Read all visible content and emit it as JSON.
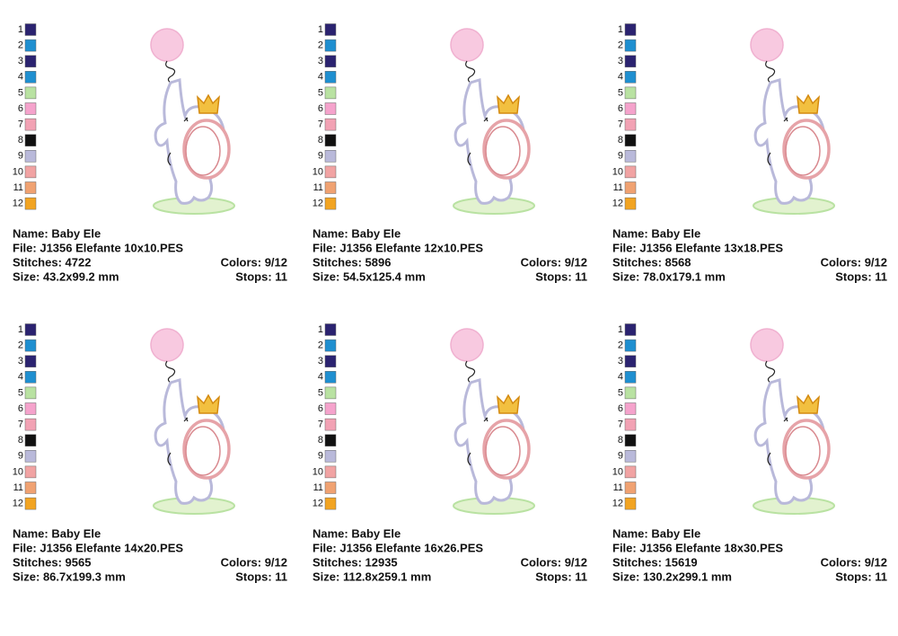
{
  "palette": [
    {
      "number": "1",
      "color": "#2b2370"
    },
    {
      "number": "2",
      "color": "#1f8fd0"
    },
    {
      "number": "3",
      "color": "#2b2370"
    },
    {
      "number": "4",
      "color": "#1f8fd0"
    },
    {
      "number": "5",
      "color": "#b9e2a2"
    },
    {
      "number": "6",
      "color": "#f5a3cc"
    },
    {
      "number": "7",
      "color": "#f2a2b4"
    },
    {
      "number": "8",
      "color": "#111111"
    },
    {
      "number": "9",
      "color": "#b9b9da"
    },
    {
      "number": "10",
      "color": "#f1a3a3"
    },
    {
      "number": "11",
      "color": "#f0a272"
    },
    {
      "number": "12",
      "color": "#f2a422"
    }
  ],
  "panels": [
    {
      "name": "Name: Baby Ele",
      "file": "File: J1356 Elefante 10x10.PES",
      "stitches": "Stitches: 4722",
      "colors": "Colors: 9/12",
      "size": "Size: 43.2x99.2 mm",
      "stops": "Stops: 11"
    },
    {
      "name": "Name: Baby Ele",
      "file": "File: J1356 Elefante 12x10.PES",
      "stitches": "Stitches: 5896",
      "colors": "Colors: 9/12",
      "size": "Size: 54.5x125.4 mm",
      "stops": "Stops: 11"
    },
    {
      "name": "Name: Baby Ele",
      "file": "File: J1356 Elefante 13x18.PES",
      "stitches": "Stitches: 8568",
      "colors": "Colors: 9/12",
      "size": "Size: 78.0x179.1 mm",
      "stops": "Stops: 11"
    },
    {
      "name": "Name: Baby Ele",
      "file": "File: J1356 Elefante 14x20.PES",
      "stitches": "Stitches: 9565",
      "colors": "Colors: 9/12",
      "size": "Size: 86.7x199.3 mm",
      "stops": "Stops: 11"
    },
    {
      "name": "Name: Baby Ele",
      "file": "File: J1356 Elefante 16x26.PES",
      "stitches": "Stitches: 12935",
      "colors": "Colors: 9/12",
      "size": "Size: 112.8x259.1 mm",
      "stops": "Stops: 11"
    },
    {
      "name": "Name: Baby Ele",
      "file": "File: J1356 Elefante 18x30.PES",
      "stitches": "Stitches: 15619",
      "colors": "Colors: 9/12",
      "size": "Size: 130.2x299.1 mm",
      "stops": "Stops: 11"
    }
  ]
}
